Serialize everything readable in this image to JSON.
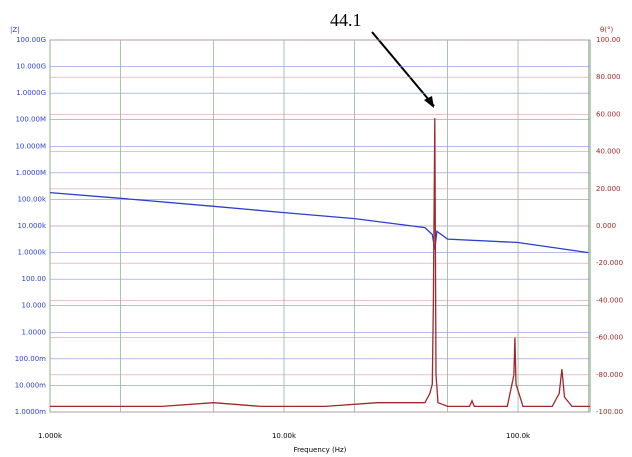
{
  "chart_data": {
    "type": "line",
    "annotation": "44.1",
    "x_label": "Frequency (Hz)",
    "y_label": "|Z|",
    "y2_label": "θ(°)",
    "xscale": "log",
    "yscale": "log",
    "grid": true,
    "xlim": [
      1000,
      203000
    ],
    "xticks": [
      {
        "value": 1000,
        "label": "1.000k"
      },
      {
        "value": 10000,
        "label": "10.00k"
      },
      {
        "value": 100000,
        "label": "100.0k"
      }
    ],
    "xminor": [
      2000,
      5000,
      20000,
      50000,
      200000
    ],
    "ylim": [
      0.001,
      100000000000
    ],
    "yticks": [
      {
        "value": 100000000000,
        "label": "100.00G"
      },
      {
        "value": 10000000000,
        "label": "10.000G"
      },
      {
        "value": 1000000000,
        "label": "1.0000G"
      },
      {
        "value": 100000000,
        "label": "100.00M"
      },
      {
        "value": 10000000,
        "label": "10.000M"
      },
      {
        "value": 1000000,
        "label": "1.0000M"
      },
      {
        "value": 100000,
        "label": "100.00k"
      },
      {
        "value": 10000,
        "label": "10.000k"
      },
      {
        "value": 1000,
        "label": "1.0000k"
      },
      {
        "value": 100,
        "label": "100.00"
      },
      {
        "value": 10,
        "label": "10.000"
      },
      {
        "value": 1,
        "label": "1.0000"
      },
      {
        "value": 0.1,
        "label": "100.00m"
      },
      {
        "value": 0.01,
        "label": "10.000m"
      },
      {
        "value": 0.001,
        "label": "1.0000m"
      }
    ],
    "y2lim": [
      -100,
      100
    ],
    "y2ticks": [
      {
        "value": 100,
        "label": "100.00"
      },
      {
        "value": 80,
        "label": "80.000"
      },
      {
        "value": 60,
        "label": "60.000"
      },
      {
        "value": 40,
        "label": "40.000"
      },
      {
        "value": 20,
        "label": "20.000"
      },
      {
        "value": 0,
        "label": "0.000"
      },
      {
        "value": -20,
        "label": "-20.000"
      },
      {
        "value": -40,
        "label": "-40.000"
      },
      {
        "value": -60,
        "label": "-60.000"
      },
      {
        "value": -80,
        "label": "-80.000"
      },
      {
        "value": -100,
        "label": "-100.00"
      }
    ],
    "series": [
      {
        "color": "#2b3fcf",
        "x": [
          1000,
          2000,
          5000,
          10000,
          20000,
          40000,
          43000,
          44100,
          45000,
          50000,
          100000,
          200000
        ],
        "values": [
          180000,
          110000,
          55000,
          32000,
          19000,
          8700,
          4800,
          1300,
          6300,
          3200,
          2400,
          1000
        ]
      },
      {
        "color": "#a0282a",
        "axis": "y2",
        "x": [
          1000,
          3000,
          5000,
          8000,
          15000,
          25000,
          40000,
          42000,
          43000,
          43500,
          44100,
          44600,
          45500,
          50000,
          62000,
          63600,
          65000,
          90000,
          96000,
          97000,
          98000,
          105000,
          140000,
          150000,
          154000,
          158000,
          170000,
          203000
        ],
        "values": [
          -97,
          -97,
          -95,
          -97,
          -97,
          -95,
          -95,
          -90,
          -85,
          -40,
          58,
          -80,
          -95,
          -97,
          -97,
          -94,
          -97,
          -97,
          -80,
          -60,
          -85,
          -97,
          -97,
          -90,
          -77,
          -92,
          -97,
          -97
        ]
      }
    ]
  }
}
